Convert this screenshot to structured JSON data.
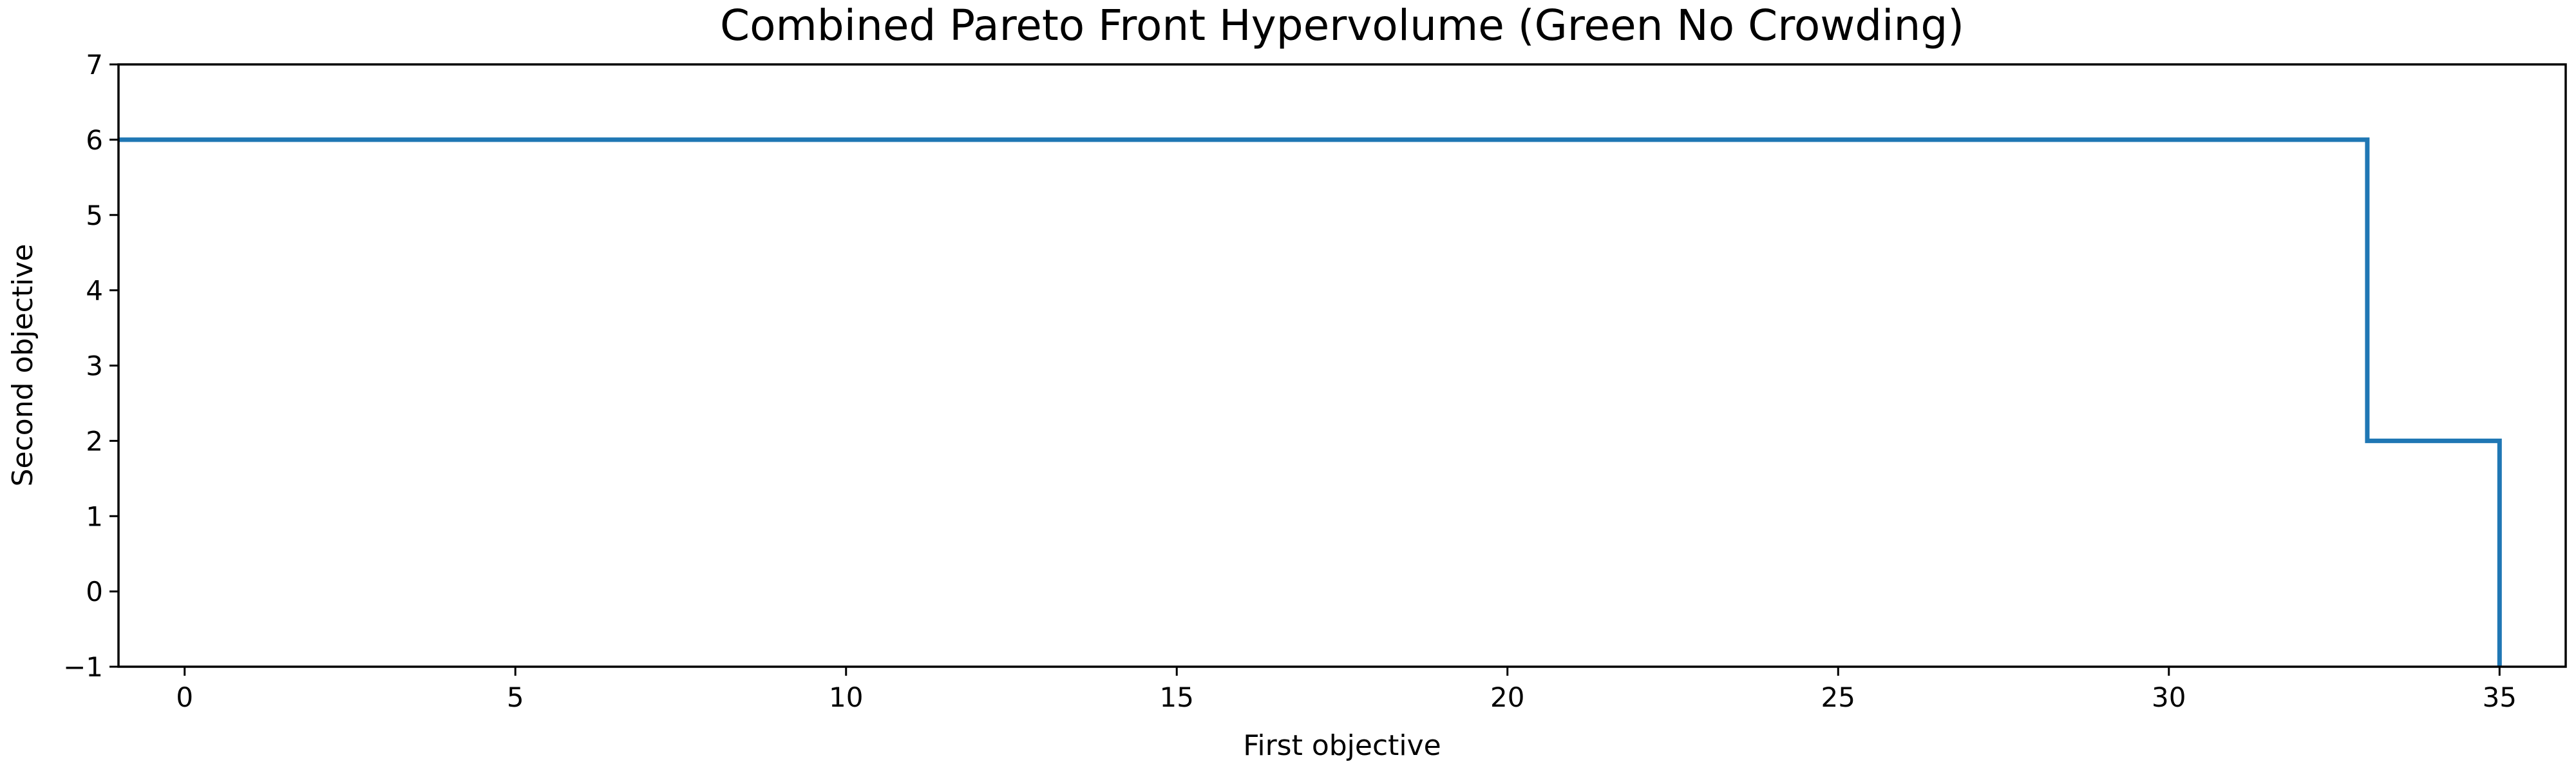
{
  "chart_data": {
    "type": "line",
    "title": "Combined Pareto Front Hypervolume (Green No Crowding)",
    "xlabel": "First objective",
    "ylabel": "Second objective",
    "xlim": [
      -1,
      36
    ],
    "ylim": [
      -1,
      7
    ],
    "xticks": [
      0,
      5,
      10,
      15,
      20,
      25,
      30,
      35
    ],
    "yticks": [
      -1,
      0,
      1,
      2,
      3,
      4,
      5,
      6,
      7
    ],
    "xtick_labels": [
      "0",
      "5",
      "10",
      "15",
      "20",
      "25",
      "30",
      "35"
    ],
    "ytick_labels": [
      "−1",
      "0",
      "1",
      "2",
      "3",
      "4",
      "5",
      "6",
      "7"
    ],
    "grid": false,
    "series": [
      {
        "color": "#1f77b4",
        "points": [
          [
            -1,
            6
          ],
          [
            33,
            6
          ],
          [
            33,
            2
          ],
          [
            35,
            2
          ],
          [
            35,
            -1
          ]
        ]
      }
    ]
  }
}
